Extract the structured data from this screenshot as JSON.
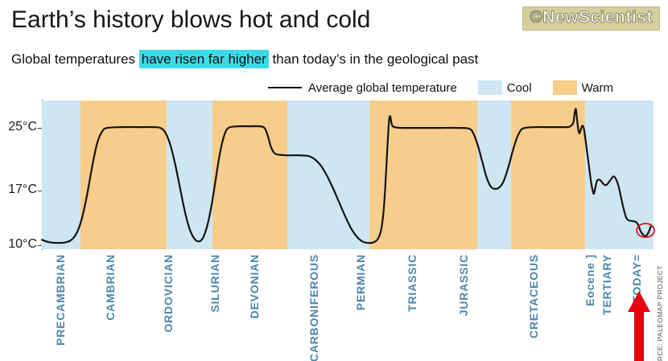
{
  "header": {
    "title": "Earth’s history blows hot and cold",
    "logo_text": "©NewScientist"
  },
  "subtitle": {
    "pre": "Global temperatures ",
    "highlight": "have risen far higher",
    "post": " than today’s in the geological past"
  },
  "legend": {
    "line_label": "Average global temperature",
    "cool_label": "Cool",
    "warm_label": "Warm"
  },
  "source": "SOURCE: PALEOMAP PROJECT",
  "colors": {
    "cool": "#cde6f2",
    "warm": "#f6cd8a",
    "line": "#141414",
    "highlight": "#38dce8",
    "period_label": "#4e86ab",
    "accent_red": "#e8000d",
    "logo_bg": "#d6cf9b",
    "axis": "#444444"
  },
  "chart_data": {
    "type": "line",
    "series_label": "Average global temperature",
    "y_unit": "°C",
    "ylim": [
      9.5,
      28.5
    ],
    "yticks": [
      {
        "label": "25°C",
        "value": 25
      },
      {
        "label": "17°C",
        "value": 17
      },
      {
        "label": "10°C",
        "value": 10
      }
    ],
    "bands": [
      {
        "type": "cool",
        "x0": 0,
        "x1": 6.3
      },
      {
        "type": "warm",
        "x0": 6.3,
        "x1": 20.4
      },
      {
        "type": "cool",
        "x0": 20.4,
        "x1": 27.9
      },
      {
        "type": "warm",
        "x0": 27.9,
        "x1": 40.1
      },
      {
        "type": "cool",
        "x0": 40.1,
        "x1": 53.6
      },
      {
        "type": "warm",
        "x0": 53.6,
        "x1": 71.2
      },
      {
        "type": "cool",
        "x0": 71.2,
        "x1": 76.7
      },
      {
        "type": "warm",
        "x0": 76.7,
        "x1": 88.8
      },
      {
        "type": "cool",
        "x0": 88.8,
        "x1": 100
      }
    ],
    "periods": [
      {
        "label": "PRECAMBRIAN",
        "x": 3.0
      },
      {
        "label": "CAMBRIAN",
        "x": 11.2
      },
      {
        "label": "ORDOVICIAN",
        "x": 20.7
      },
      {
        "label": "SILURIAN",
        "x": 28.3
      },
      {
        "label": "DEVONIAN",
        "x": 34.7
      },
      {
        "label": "CARBONIFEROUS",
        "x": 44.5
      },
      {
        "label": "PERMIAN",
        "x": 52.1
      },
      {
        "label": "TRIASSIC",
        "x": 60.5
      },
      {
        "label": "JURASSIC",
        "x": 68.9
      },
      {
        "label": "CRETACEOUS",
        "x": 80.4
      },
      {
        "label": "Eocene ]",
        "x": 89.6
      },
      {
        "label": "TERTIARY",
        "x": 92.4
      },
      {
        "label": "TODAY=",
        "x": 97.2
      }
    ],
    "points": [
      [
        0,
        10.7
      ],
      [
        1.2,
        10.4
      ],
      [
        2.6,
        10.3
      ],
      [
        4.0,
        10.4
      ],
      [
        5.0,
        10.8
      ],
      [
        5.9,
        11.9
      ],
      [
        6.7,
        13.9
      ],
      [
        7.5,
        16.9
      ],
      [
        8.3,
        20.4
      ],
      [
        9.1,
        23.2
      ],
      [
        9.9,
        24.6
      ],
      [
        10.7,
        25.0
      ],
      [
        13,
        25.1
      ],
      [
        16,
        25.1
      ],
      [
        18.5,
        25.1
      ],
      [
        19.4,
        25.0
      ],
      [
        20.1,
        24.5
      ],
      [
        20.9,
        23.1
      ],
      [
        21.7,
        20.7
      ],
      [
        22.5,
        17.7
      ],
      [
        23.3,
        14.6
      ],
      [
        24.1,
        12.2
      ],
      [
        24.9,
        10.9
      ],
      [
        25.6,
        10.5
      ],
      [
        26.3,
        10.9
      ],
      [
        27.0,
        12.4
      ],
      [
        27.7,
        14.9
      ],
      [
        28.4,
        18.3
      ],
      [
        29.1,
        21.7
      ],
      [
        29.8,
        24.0
      ],
      [
        30.5,
        25.0
      ],
      [
        32,
        25.2
      ],
      [
        34,
        25.2
      ],
      [
        35.6,
        25.2
      ],
      [
        36.4,
        25.0
      ],
      [
        36.9,
        24.1
      ],
      [
        37.4,
        22.7
      ],
      [
        37.9,
        21.9
      ],
      [
        38.5,
        21.6
      ],
      [
        40,
        21.5
      ],
      [
        42,
        21.5
      ],
      [
        43.6,
        21.4
      ],
      [
        44.6,
        21.0
      ],
      [
        45.6,
        20.2
      ],
      [
        46.6,
        18.9
      ],
      [
        47.6,
        17.3
      ],
      [
        48.6,
        15.5
      ],
      [
        49.6,
        13.7
      ],
      [
        50.6,
        12.1
      ],
      [
        51.6,
        11.0
      ],
      [
        52.4,
        10.5
      ],
      [
        53.3,
        10.3
      ],
      [
        54.3,
        10.4
      ],
      [
        55.0,
        10.9
      ],
      [
        55.5,
        12.1
      ],
      [
        55.9,
        14.6
      ],
      [
        56.2,
        18.2
      ],
      [
        56.5,
        22.6
      ],
      [
        56.75,
        25.8
      ],
      [
        56.95,
        26.5
      ],
      [
        57.2,
        25.5
      ],
      [
        57.6,
        25.1
      ],
      [
        59,
        25.0
      ],
      [
        62,
        25.0
      ],
      [
        65,
        25.0
      ],
      [
        68,
        25.0
      ],
      [
        69.9,
        24.9
      ],
      [
        70.6,
        24.2
      ],
      [
        71.3,
        22.7
      ],
      [
        72.0,
        20.7
      ],
      [
        72.7,
        18.7
      ],
      [
        73.4,
        17.5
      ],
      [
        74.1,
        17.2
      ],
      [
        74.8,
        17.4
      ],
      [
        75.5,
        18.2
      ],
      [
        76.2,
        19.8
      ],
      [
        76.9,
        21.8
      ],
      [
        77.6,
        23.6
      ],
      [
        78.3,
        24.7
      ],
      [
        79.0,
        25.0
      ],
      [
        80.5,
        25.1
      ],
      [
        82.5,
        25.1
      ],
      [
        84.5,
        25.1
      ],
      [
        85.8,
        25.1
      ],
      [
        86.4,
        25.2
      ],
      [
        86.9,
        25.7
      ],
      [
        87.1,
        26.9
      ],
      [
        87.3,
        27.4
      ],
      [
        87.5,
        26.1
      ],
      [
        87.7,
        24.8
      ],
      [
        87.9,
        24.3
      ],
      [
        88.15,
        24.9
      ],
      [
        88.4,
        25.3
      ],
      [
        88.65,
        24.8
      ],
      [
        88.95,
        23.1
      ],
      [
        89.35,
        20.7
      ],
      [
        89.75,
        18.3
      ],
      [
        90.05,
        17.0
      ],
      [
        90.25,
        16.6
      ],
      [
        90.5,
        17.4
      ],
      [
        90.75,
        18.2
      ],
      [
        91.05,
        18.4
      ],
      [
        91.45,
        18.2
      ],
      [
        91.85,
        17.8
      ],
      [
        92.25,
        17.7
      ],
      [
        92.65,
        18.0
      ],
      [
        93.1,
        18.5
      ],
      [
        93.5,
        18.8
      ],
      [
        93.9,
        18.4
      ],
      [
        94.3,
        17.5
      ],
      [
        94.7,
        16.1
      ],
      [
        95.1,
        14.7
      ],
      [
        95.5,
        13.6
      ],
      [
        95.9,
        13.2
      ],
      [
        96.5,
        13.1
      ],
      [
        97.1,
        13.0
      ],
      [
        97.5,
        12.6
      ],
      [
        97.9,
        11.8
      ],
      [
        98.35,
        11.3
      ],
      [
        98.8,
        11.2
      ],
      [
        99.2,
        11.7
      ],
      [
        99.6,
        12.5
      ]
    ],
    "today_annotation": {
      "circle_x": 98.7,
      "circle_temp": 11.9,
      "arrow_x": 97.6
    }
  }
}
